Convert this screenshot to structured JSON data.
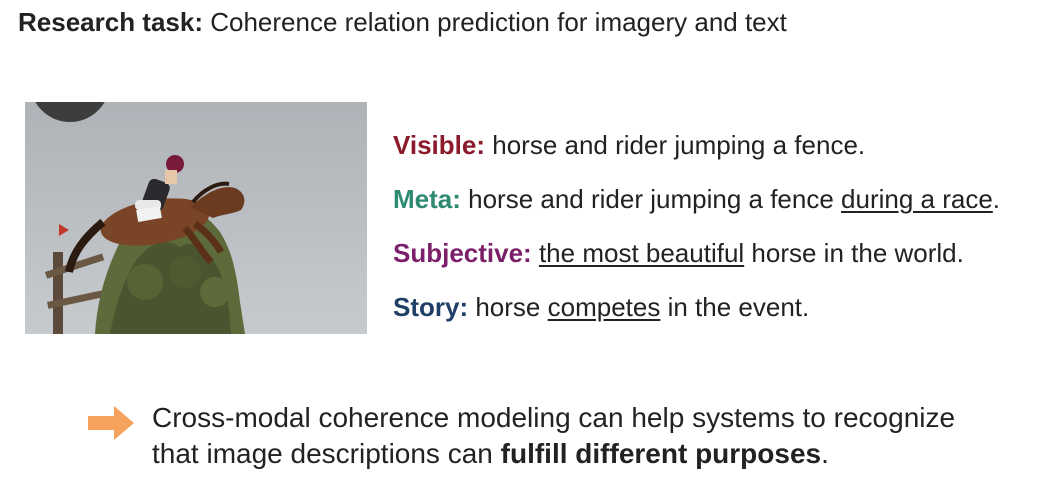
{
  "title": {
    "lead": "Research task:",
    "rest": " Coherence relation prediction for imagery and text"
  },
  "photo": {
    "subject": "horse and rider jumping a fence"
  },
  "captions": [
    {
      "label": "Visible:",
      "color": "#8b1a2b",
      "pre": " horse and rider jumping a fence.",
      "underlined": "",
      "post": ""
    },
    {
      "label": "Meta:",
      "color": "#2e8b72",
      "pre": " horse and rider jumping a fence ",
      "underlined": "during a race",
      "post": "."
    },
    {
      "label": "Subjective:",
      "color": "#7b1f6a",
      "pre": " ",
      "underlined": "the most beautiful",
      "post": " horse in the world."
    },
    {
      "label": "Story:",
      "color": "#1f3f66",
      "pre": " horse ",
      "underlined": "competes",
      "post": " in the event."
    }
  ],
  "takeaway": {
    "line1": "Cross-modal coherence modeling can help systems to recognize",
    "line2_pre": "that image descriptions can ",
    "line2_bold": "fulfill different purposes",
    "line2_post": ".",
    "arrow_color": "#f5a25d",
    "arrow_icon": "arrow-right-icon"
  }
}
